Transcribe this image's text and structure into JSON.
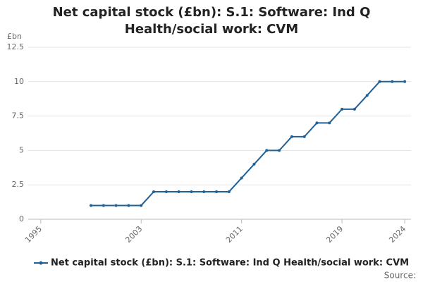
{
  "chart_data": {
    "type": "line",
    "title": "Net capital stock (£bn): S.1: Software: Ind Q Health/social work: CVM",
    "y_label": "£bn",
    "source": "Source:",
    "x": [
      1999,
      2000,
      2001,
      2002,
      2003,
      2004,
      2005,
      2006,
      2007,
      2008,
      2009,
      2010,
      2011,
      2012,
      2013,
      2014,
      2015,
      2016,
      2017,
      2018,
      2019,
      2020,
      2021,
      2022,
      2023,
      2024
    ],
    "series": [
      {
        "name": "Net capital stock (£bn): S.1: Software: Ind Q Health/social work: CVM",
        "color": "#206095",
        "values": [
          1,
          1,
          1,
          1,
          1,
          2,
          2,
          2,
          2,
          2,
          2,
          2,
          3,
          4,
          5,
          5,
          6,
          6,
          7,
          7,
          8,
          8,
          9,
          10,
          10,
          10
        ]
      }
    ],
    "xlim": [
      1994,
      2024.5
    ],
    "xticks": [
      1995,
      2003,
      2011,
      2019,
      2024
    ],
    "ylim": [
      0,
      12.5
    ],
    "yticks": [
      0,
      {
        "value": 2.5,
        "label": "2.5"
      },
      5,
      {
        "value": 7.5,
        "label": "7.5"
      },
      10,
      {
        "value": 12.5,
        "label": "12.5"
      }
    ],
    "grid": true
  }
}
